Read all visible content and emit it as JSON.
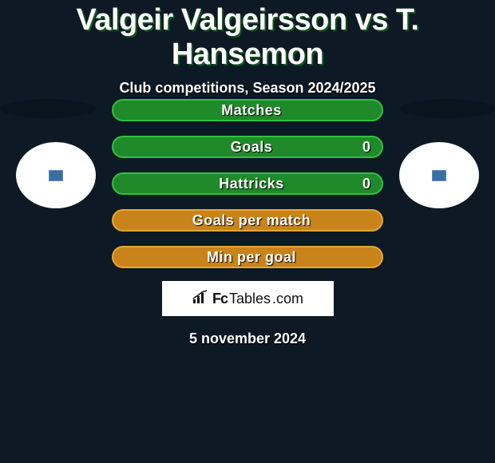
{
  "title": "Valgeir Valgeirsson vs T. Hansemon",
  "subtitle": "Club competitions, Season 2024/2025",
  "date": "5 november 2024",
  "logo": {
    "fc": "Fc",
    "tables": "Tables",
    "suffix": ".com"
  },
  "colors": {
    "background": "#0d1925",
    "title_shadow": "#155a1f",
    "avatar_bg": "#ffffff",
    "badge_bg": "#3a6fa6"
  },
  "stats": [
    {
      "label": "Matches",
      "value_right": "",
      "fill": "#1f8a2a",
      "border": "#30c23e"
    },
    {
      "label": "Goals",
      "value_right": "0",
      "fill": "#1f8a2a",
      "border": "#30c23e"
    },
    {
      "label": "Hattricks",
      "value_right": "0",
      "fill": "#1f8a2a",
      "border": "#30c23e"
    },
    {
      "label": "Goals per match",
      "value_right": "",
      "fill": "#c9831b",
      "border": "#e8a634"
    },
    {
      "label": "Min per goal",
      "value_right": "",
      "fill": "#c9831b",
      "border": "#e8a634"
    }
  ]
}
